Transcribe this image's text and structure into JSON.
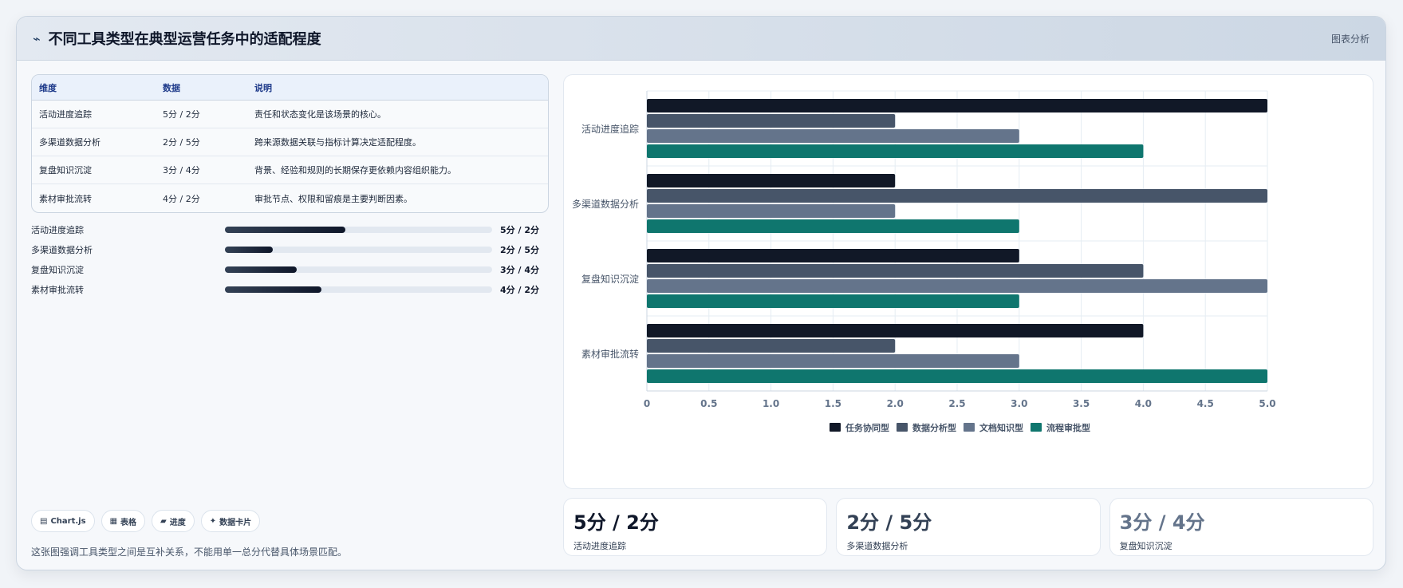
{
  "header": {
    "title": "不同工具类型在典型运营任务中的适配程度",
    "tag": "图表分析"
  },
  "table": {
    "headers": [
      "维度",
      "数据",
      "说明"
    ],
    "rows": [
      [
        "活动进度追踪",
        "5分 / 2分",
        "责任和状态变化是该场景的核心。"
      ],
      [
        "多渠道数据分析",
        "2分 / 5分",
        "跨来源数据关联与指标计算决定适配程度。"
      ],
      [
        "复盘知识沉淀",
        "3分 / 4分",
        "背景、经验和规则的长期保存更依赖内容组织能力。"
      ],
      [
        "素材审批流转",
        "4分 / 2分",
        "审批节点、权限和留痕是主要判断因素。"
      ]
    ]
  },
  "progress": [
    {
      "label": "活动进度追踪",
      "value": "5分 / 2分",
      "fill": 0.45
    },
    {
      "label": "多渠道数据分析",
      "value": "2分 / 5分",
      "fill": 0.18
    },
    {
      "label": "复盘知识沉淀",
      "value": "3分 / 4分",
      "fill": 0.27
    },
    {
      "label": "素材审批流转",
      "value": "4分 / 2分",
      "fill": 0.36
    }
  ],
  "chips": [
    {
      "icon": "▤",
      "label": "Chart.js"
    },
    {
      "icon": "▦",
      "label": "表格"
    },
    {
      "icon": "▰",
      "label": "进度"
    },
    {
      "icon": "✦",
      "label": "数据卡片"
    }
  ],
  "note": "这张图强调工具类型之间是互补关系，不能用单一总分代替具体场景匹配。",
  "stats": [
    {
      "value": "5分 / 2分",
      "label": "活动进度追踪",
      "color": "#0f172a"
    },
    {
      "value": "2分 / 5分",
      "label": "多渠道数据分析",
      "color": "#334155"
    },
    {
      "value": "3分 / 4分",
      "label": "复盘知识沉淀",
      "color": "#64748b"
    }
  ],
  "chart_data": {
    "type": "bar",
    "orientation": "horizontal",
    "categories": [
      "活动进度追踪",
      "多渠道数据分析",
      "复盘知识沉淀",
      "素材审批流转"
    ],
    "series": [
      {
        "name": "任务协同型",
        "color": "#111827",
        "values": [
          5,
          2,
          3,
          4
        ]
      },
      {
        "name": "数据分析型",
        "color": "#475569",
        "values": [
          2,
          5,
          4,
          2
        ]
      },
      {
        "name": "文档知识型",
        "color": "#64748b",
        "values": [
          3,
          2,
          5,
          3
        ]
      },
      {
        "name": "流程审批型",
        "color": "#0f766e",
        "values": [
          4,
          3,
          3,
          5
        ]
      }
    ],
    "xlim": [
      0,
      5
    ],
    "xticks": [
      "0",
      "0.5",
      "1.0",
      "1.5",
      "2.0",
      "2.5",
      "3.0",
      "3.5",
      "4.0",
      "4.5",
      "5.0"
    ],
    "grid": true,
    "legend": "bottom"
  }
}
